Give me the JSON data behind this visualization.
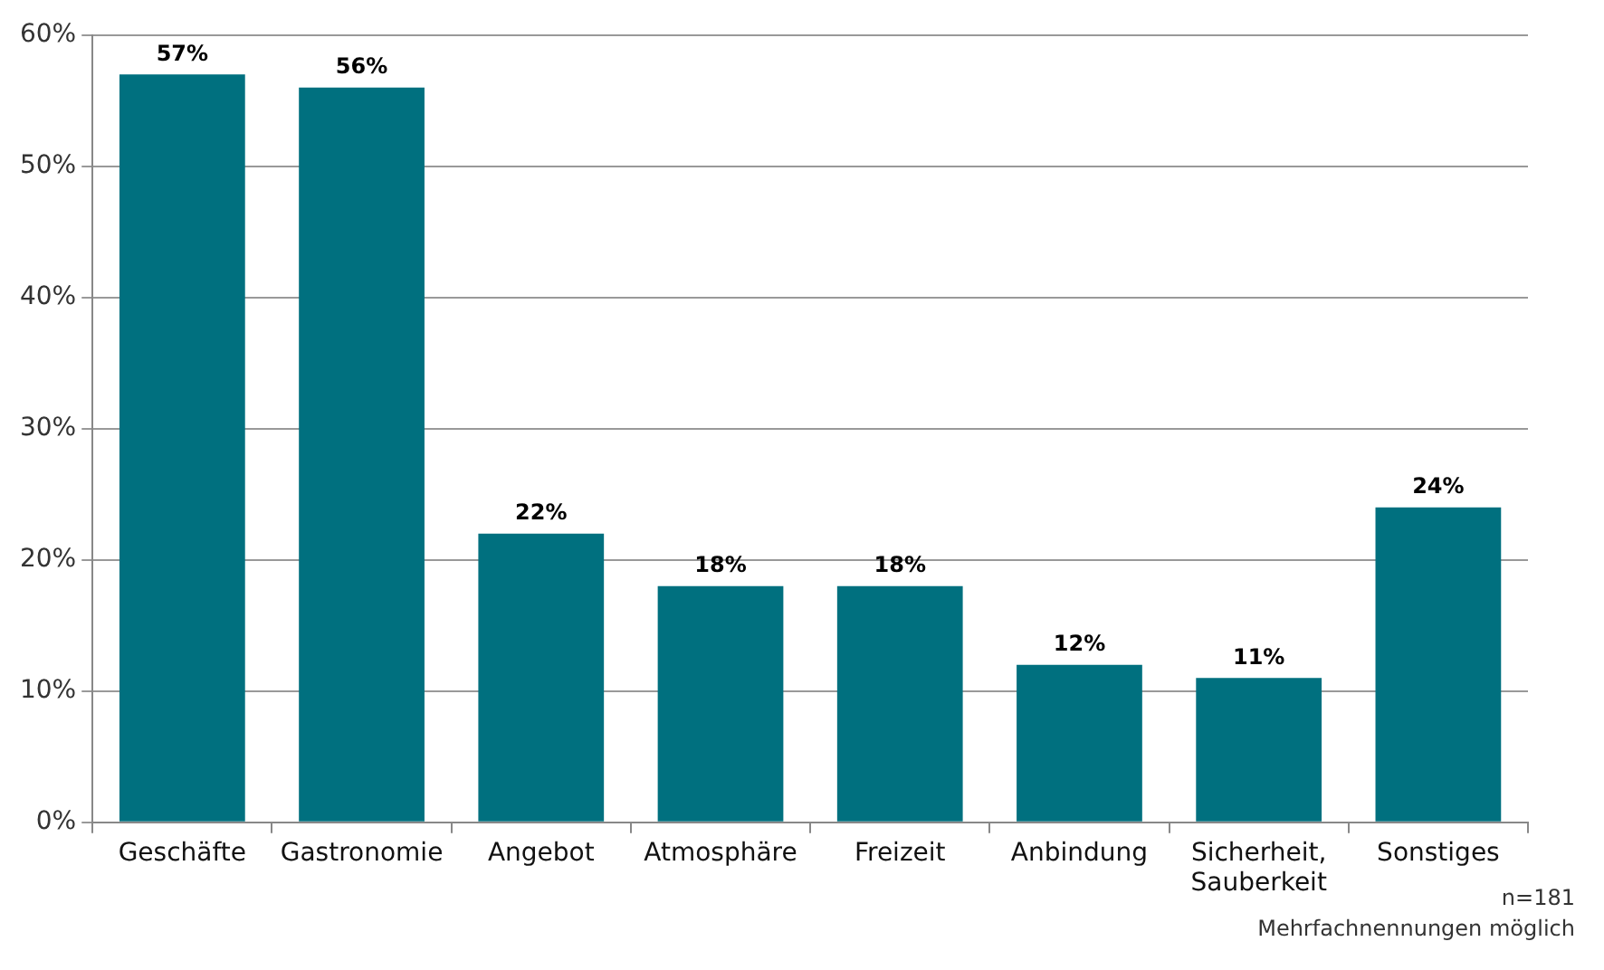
{
  "chart_data": {
    "type": "bar",
    "categories": [
      "Geschäfte",
      "Gastronomie",
      "Angebot",
      "Atmosphäre",
      "Freizeit",
      "Anbindung",
      "Sicherheit, Sauberkeit",
      "Sonstiges"
    ],
    "values": [
      57,
      56,
      22,
      18,
      18,
      12,
      11,
      24
    ],
    "value_labels": [
      "57%",
      "56%",
      "22%",
      "18%",
      "18%",
      "12%",
      "11%",
      "24%"
    ],
    "color": "#00707f",
    "ylim": [
      0,
      60
    ],
    "yticks": [
      {
        "value": 0,
        "label": "0%"
      },
      {
        "value": 10,
        "label": "10%"
      },
      {
        "value": 20,
        "label": "20%"
      },
      {
        "value": 30,
        "label": "30%"
      },
      {
        "value": 40,
        "label": "40%"
      },
      {
        "value": 50,
        "label": "50%"
      },
      {
        "value": 60,
        "label": "60%"
      }
    ],
    "grid": "y",
    "annotations": [
      "n=181",
      "Mehrfachnennungen möglich"
    ]
  }
}
